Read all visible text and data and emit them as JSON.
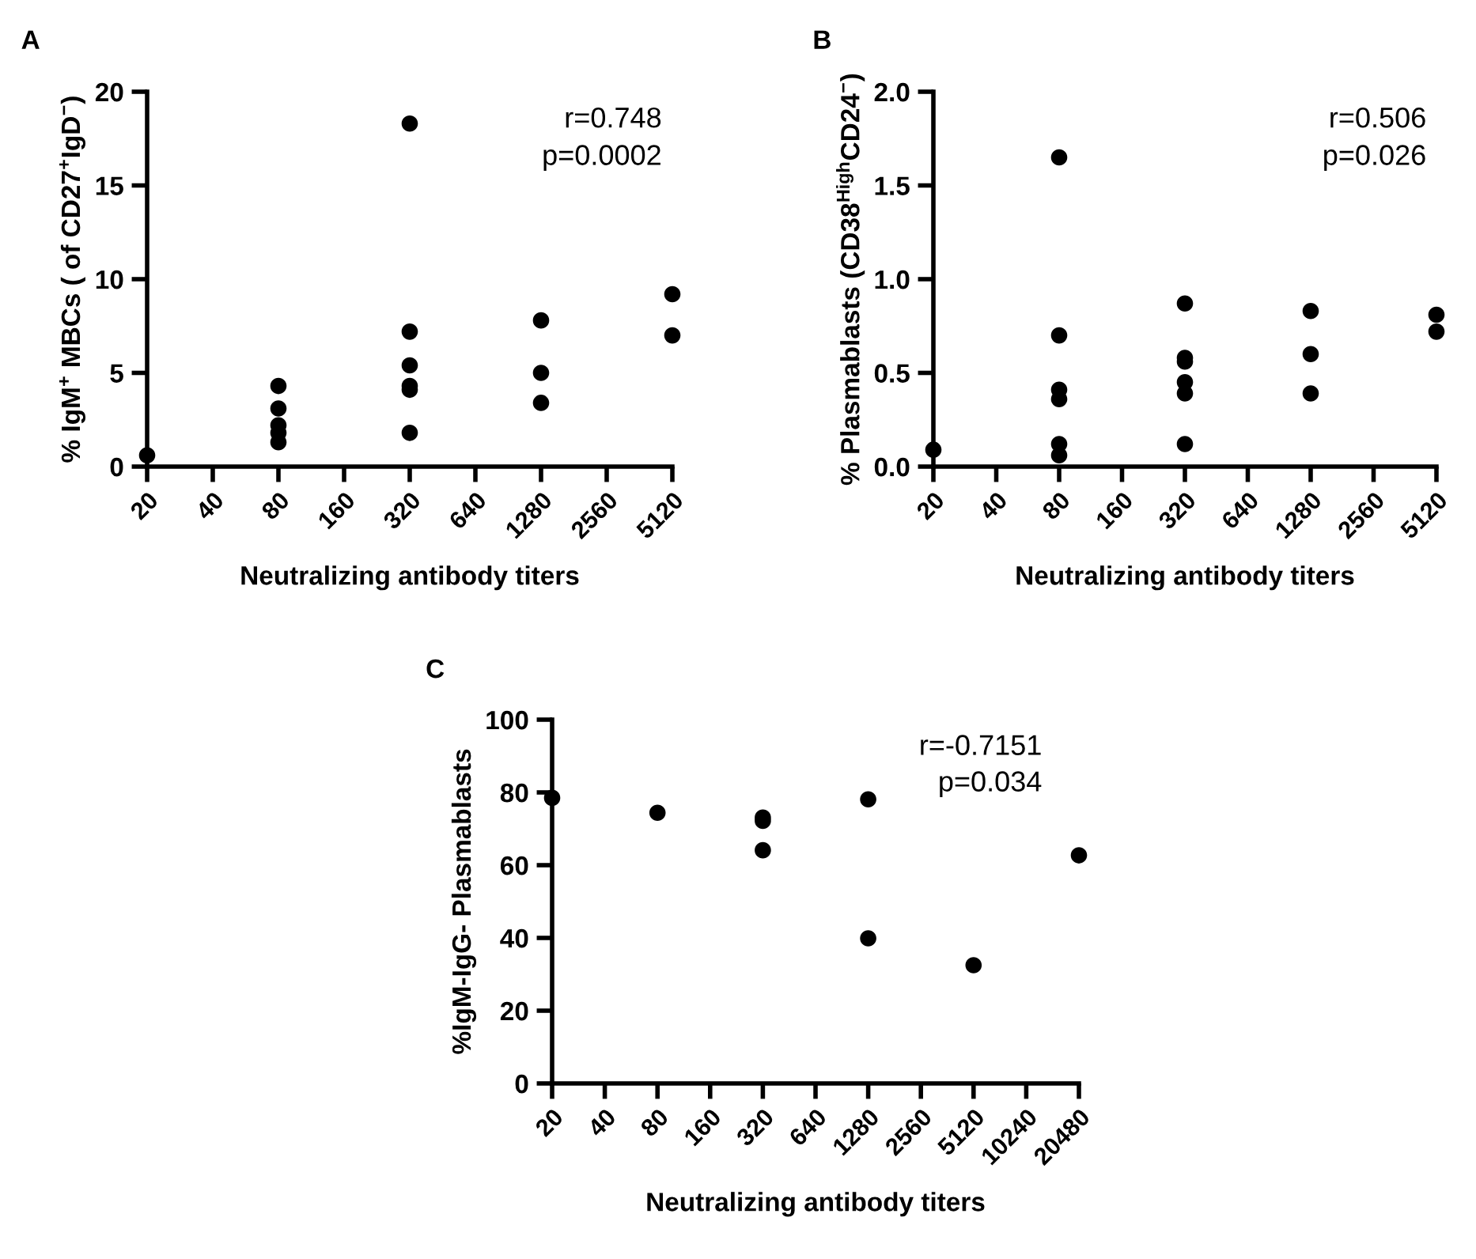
{
  "chart_data": [
    {
      "type": "scatter",
      "title": "A",
      "xlabel": "Neutralizing antibody titers",
      "ylabel": "% IgM$^{+}$ MBCs ( of CD27$^{+}$IgD$^{−}$)",
      "log": "x",
      "marker": "circle",
      "grid": false,
      "xlim": [
        20,
        5120
      ],
      "xticks": [
        20,
        40,
        80,
        160,
        320,
        640,
        1280,
        2560,
        5120
      ],
      "ylim": [
        0,
        20
      ],
      "yticks": [
        0,
        5,
        10,
        15,
        20
      ],
      "annotations": [
        "r=0.748",
        "p=0.0002"
      ],
      "series": [
        {
          "color": "#000000",
          "x": [
            20,
            80,
            80,
            80,
            80,
            80,
            320,
            320,
            320,
            320,
            320,
            320,
            1280,
            1280,
            1280,
            5120,
            5120
          ],
          "values": [
            0.6,
            4.3,
            3.1,
            2.2,
            1.8,
            1.3,
            18.3,
            7.2,
            5.4,
            4.3,
            4.1,
            1.8,
            7.8,
            5.0,
            3.4,
            9.2,
            7.0
          ]
        }
      ]
    },
    {
      "type": "scatter",
      "title": "B",
      "xlabel": "Neutralizing antibody titers",
      "ylabel": "% Plasmablasts (CD38$^{High}$CD24$^{−}$)",
      "log": "x",
      "marker": "circle",
      "grid": false,
      "xlim": [
        20,
        5120
      ],
      "xticks": [
        20,
        40,
        80,
        160,
        320,
        640,
        1280,
        2560,
        5120
      ],
      "ylim": [
        0,
        2.0
      ],
      "yticks": [
        {
          "value": 0,
          "label": "0.0"
        },
        0.5,
        {
          "value": 1,
          "label": "1.0"
        },
        1.5,
        {
          "value": 2,
          "label": "2.0"
        }
      ],
      "annotations": [
        "r=0.506",
        "p=0.026"
      ],
      "series": [
        {
          "color": "#000000",
          "x": [
            20,
            80,
            80,
            80,
            80,
            80,
            80,
            320,
            320,
            320,
            320,
            320,
            320,
            1280,
            1280,
            1280,
            5120,
            5120
          ],
          "values": [
            0.09,
            1.65,
            0.7,
            0.41,
            0.36,
            0.12,
            0.06,
            0.87,
            0.58,
            0.56,
            0.45,
            0.39,
            0.12,
            0.83,
            0.6,
            0.39,
            0.81,
            0.72
          ]
        }
      ]
    },
    {
      "type": "scatter",
      "title": "C",
      "xlabel": "Neutralizing antibody titers",
      "ylabel": "%IgM-IgG- Plasmablasts",
      "log": "x",
      "marker": "circle",
      "grid": false,
      "xlim": [
        20,
        20480
      ],
      "xticks": [
        20,
        40,
        80,
        160,
        320,
        640,
        1280,
        2560,
        5120,
        10240,
        20480
      ],
      "ylim": [
        0,
        100
      ],
      "yticks": [
        0,
        20,
        40,
        60,
        80,
        100
      ],
      "annotations": [
        "r=-0.7151",
        "p=0.034"
      ],
      "series": [
        {
          "color": "#000000",
          "x": [
            20,
            80,
            320,
            320,
            320,
            1280,
            1280,
            5120,
            20480
          ],
          "values": [
            78.5,
            74.4,
            73.1,
            72.2,
            64.1,
            78.1,
            39.9,
            32.5,
            62.7
          ]
        }
      ]
    }
  ]
}
